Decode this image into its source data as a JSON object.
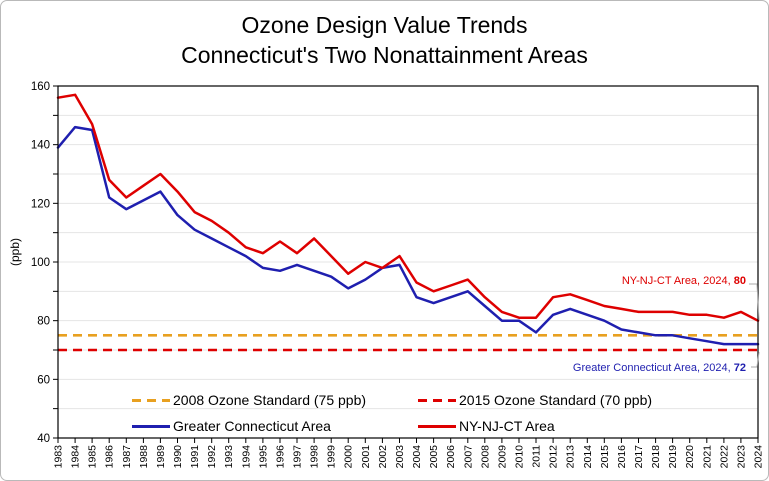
{
  "figure": {
    "title_line1": "Ozone Design Value Trends",
    "title_line2": "Connecticut's Two Nonattainment Areas"
  },
  "chart_data": {
    "type": "line",
    "x": [
      1983,
      1984,
      1985,
      1986,
      1987,
      1988,
      1989,
      1990,
      1991,
      1992,
      1993,
      1994,
      1995,
      1996,
      1997,
      1998,
      1999,
      2000,
      2001,
      2002,
      2003,
      2004,
      2005,
      2006,
      2007,
      2008,
      2009,
      2010,
      2011,
      2012,
      2013,
      2014,
      2015,
      2016,
      2017,
      2018,
      2019,
      2020,
      2021,
      2022,
      2023,
      2024
    ],
    "ylabel": "(ppb)",
    "ylim": [
      40,
      160
    ],
    "ytick_step": 20,
    "grid_step": 10,
    "grid_color": "#e4e4e4",
    "series": [
      {
        "name": "Greater Connecticut Area",
        "color": "#1f1faf",
        "values": [
          139,
          146,
          145,
          122,
          118,
          121,
          124,
          116,
          111,
          108,
          105,
          102,
          98,
          97,
          99,
          97,
          95,
          91,
          94,
          98,
          99,
          88,
          86,
          88,
          90,
          85,
          80,
          80,
          76,
          82,
          84,
          82,
          80,
          77,
          76,
          75,
          75,
          74,
          73,
          72,
          72,
          72
        ]
      },
      {
        "name": "NY-NJ-CT Area",
        "color": "#de0000",
        "values": [
          156,
          157,
          147,
          128,
          122,
          126,
          130,
          124,
          117,
          114,
          110,
          105,
          103,
          107,
          103,
          108,
          102,
          96,
          100,
          98,
          102,
          93,
          90,
          92,
          94,
          88,
          83,
          81,
          81,
          88,
          89,
          87,
          85,
          84,
          83,
          83,
          83,
          82,
          82,
          81,
          83,
          80
        ]
      }
    ],
    "reference_lines": [
      {
        "name": "2008 Ozone Standard (75 ppb)",
        "value": 75,
        "color": "#e8a020",
        "style": "dashed"
      },
      {
        "name": "2015 Ozone Standard (70 ppb)",
        "value": 70,
        "color": "#de0000",
        "style": "dashed"
      }
    ],
    "annotations": [
      {
        "text": "NY-NJ-CT Area, 2024, ",
        "bold": "80",
        "color": "#de0000"
      },
      {
        "text": "Greater Connecticut Area, 2024, ",
        "bold": "72",
        "color": "#1f1faf"
      }
    ],
    "legend_position": "bottom-inside"
  }
}
